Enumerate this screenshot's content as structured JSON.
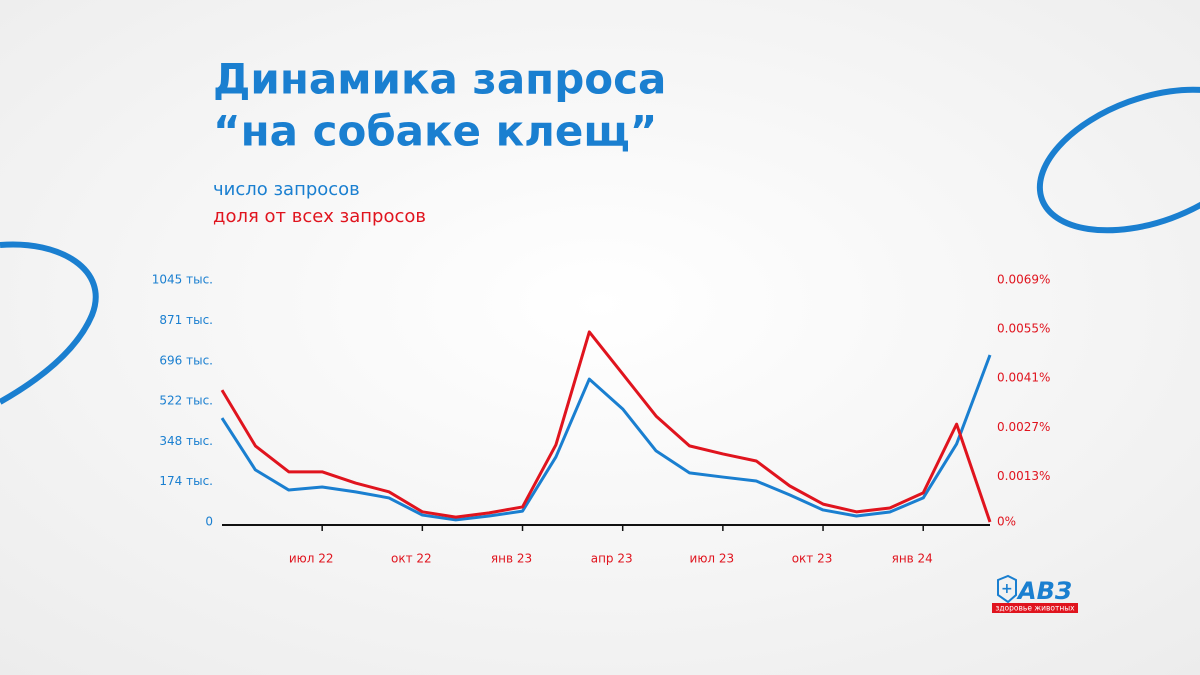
{
  "chart_data": {
    "type": "line",
    "title": [
      "Динамика запроса",
      "“на собаке клещ”"
    ],
    "categories": [
      null,
      null,
      null,
      "июл 22",
      null,
      null,
      "окт 22",
      null,
      null,
      "янв 23",
      null,
      null,
      "апр 23",
      null,
      null,
      "июл 23",
      null,
      null,
      "окт 23",
      null,
      null,
      "янв 24",
      null,
      null
    ],
    "series": [
      {
        "name": "число запросов",
        "color": "#1a7fd0",
        "values": [
          449,
          225,
          138,
          151,
          130,
          104,
          30,
          9,
          26,
          47,
          281,
          617,
          488,
          307,
          212,
          194,
          177,
          117,
          52,
          26,
          43,
          104,
          337,
          721
        ]
      },
      {
        "name": "доля от всех запросов",
        "color": "#e0141e",
        "axis": "y2",
        "values": [
          0.00376,
          0.00217,
          0.00143,
          0.00143,
          0.00111,
          0.00086,
          0.00029,
          0.00014,
          0.00026,
          0.00043,
          0.0022,
          0.00542,
          0.00422,
          0.00302,
          0.00217,
          0.00194,
          0.00174,
          0.00103,
          0.00051,
          0.00029,
          0.0004,
          0.00083,
          0.00279,
          0
        ]
      }
    ],
    "ylim": [
      0,
      1045
    ],
    "yticks": [
      0,
      {
        "value": 174,
        "label": "174 тыс."
      },
      {
        "value": 348,
        "label": "348 тыс."
      },
      {
        "value": 522,
        "label": "522 тыс."
      },
      {
        "value": 696,
        "label": "696 тыс."
      },
      {
        "value": 871,
        "label": "871 тыс."
      },
      {
        "value": 1045,
        "label": "1045 тыс."
      }
    ],
    "y2lim": [
      0,
      0.0069
    ],
    "y2ticks": [
      {
        "value": 0,
        "label": "0%"
      },
      {
        "value": 0.0013,
        "label": "0.0013%"
      },
      {
        "value": 0.0027,
        "label": "0.0027%"
      },
      {
        "value": 0.0041,
        "label": "0.0041%"
      },
      {
        "value": 0.0055,
        "label": "0.0055%"
      },
      {
        "value": 0.0069,
        "label": "0.0069%"
      }
    ],
    "grid": false
  },
  "logo": {
    "text": "АВЗ",
    "tagline": "здоровье животных"
  }
}
